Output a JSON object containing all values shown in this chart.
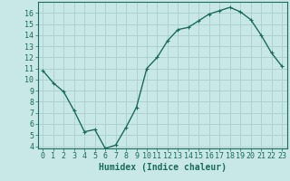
{
  "x": [
    0,
    1,
    2,
    3,
    4,
    5,
    6,
    7,
    8,
    9,
    10,
    11,
    12,
    13,
    14,
    15,
    16,
    17,
    18,
    19,
    20,
    21,
    22,
    23
  ],
  "y": [
    10.8,
    9.7,
    8.9,
    7.2,
    5.3,
    5.5,
    3.8,
    4.1,
    5.7,
    7.5,
    11.0,
    12.0,
    13.5,
    14.5,
    14.7,
    15.3,
    15.9,
    16.2,
    16.5,
    16.1,
    15.4,
    14.0,
    12.4,
    11.2
  ],
  "line_color": "#1a6b5a",
  "marker": "+",
  "marker_size": 3,
  "marker_linewidth": 0.8,
  "bg_color": "#c8e8e8",
  "grid_color": "#aacece",
  "xlabel": "Humidex (Indice chaleur)",
  "ylabel": "",
  "xlim": [
    -0.5,
    23.5
  ],
  "ylim": [
    3.8,
    17.0
  ],
  "yticks": [
    4,
    5,
    6,
    7,
    8,
    9,
    10,
    11,
    12,
    13,
    14,
    15,
    16
  ],
  "xticks": [
    0,
    1,
    2,
    3,
    4,
    5,
    6,
    7,
    8,
    9,
    10,
    11,
    12,
    13,
    14,
    15,
    16,
    17,
    18,
    19,
    20,
    21,
    22,
    23
  ],
  "tick_label_fontsize": 6,
  "xlabel_fontsize": 7,
  "axis_color": "#1a6b5a",
  "linewidth": 1.0
}
